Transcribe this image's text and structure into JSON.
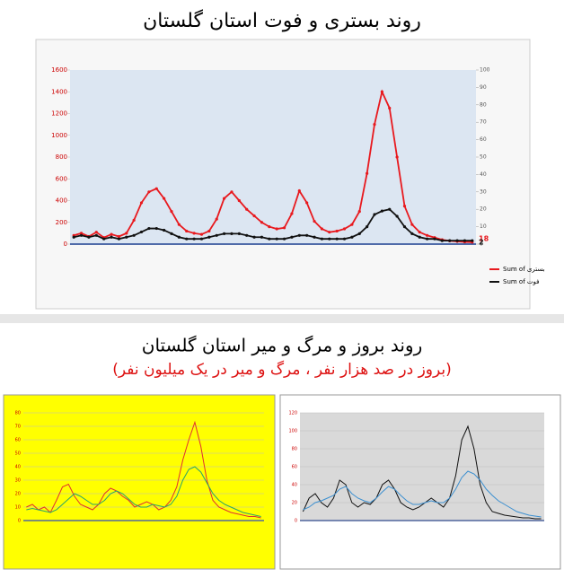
{
  "header": {
    "title": "روند بستری و فوت استان گلستان",
    "subtitle": "روند بروز و مرگ و میر استان گلستان",
    "note": "(بروز در صد هزار نفر ، مرگ و میر در یک میلیون نفر)"
  },
  "chart_data": [
    {
      "type": "line",
      "categories": [
        null,
        null,
        null,
        null,
        null,
        null,
        null,
        null,
        null,
        null,
        null,
        null,
        null,
        null,
        null,
        null,
        null,
        null,
        null,
        null,
        null,
        null,
        null,
        null,
        null,
        null,
        null,
        null,
        null,
        null,
        null,
        null,
        null,
        null,
        null,
        null,
        null,
        null,
        null,
        null,
        null,
        null,
        null,
        null,
        null,
        null,
        null,
        null,
        null,
        null,
        null,
        null,
        null,
        null
      ],
      "series": [
        {
          "name": "Sum of بستری",
          "color": "#e8191e",
          "values": [
            80,
            100,
            70,
            110,
            60,
            90,
            70,
            100,
            220,
            380,
            480,
            510,
            420,
            300,
            180,
            120,
            100,
            90,
            120,
            230,
            420,
            480,
            400,
            320,
            260,
            200,
            160,
            140,
            150,
            280,
            490,
            380,
            210,
            140,
            110,
            120,
            140,
            180,
            300,
            650,
            1100,
            1400,
            1250,
            800,
            350,
            180,
            110,
            80,
            60,
            40,
            30,
            25,
            20,
            18
          ]
        },
        {
          "name": "Sum of فوت",
          "color": "#111111",
          "axis": "y2",
          "values": [
            4,
            5,
            4,
            5,
            3,
            4,
            3,
            4,
            5,
            7,
            9,
            9,
            8,
            6,
            4,
            3,
            3,
            3,
            4,
            5,
            6,
            6,
            6,
            5,
            4,
            4,
            3,
            3,
            3,
            4,
            5,
            5,
            4,
            3,
            3,
            3,
            3,
            4,
            6,
            10,
            17,
            19,
            20,
            16,
            10,
            6,
            4,
            3,
            3,
            2,
            2,
            2,
            2,
            2
          ]
        }
      ],
      "ylim": [
        0,
        1600
      ],
      "yticks": [
        0,
        200,
        400,
        600,
        800,
        1000,
        1200,
        1400,
        1600
      ],
      "y2lim": [
        0,
        100
      ],
      "y2ticks": [
        0,
        10,
        20,
        30,
        40,
        50,
        60,
        70,
        80,
        90,
        100
      ],
      "grid": false
    },
    {
      "type": "line",
      "categories": [
        null,
        null,
        null,
        null,
        null,
        null,
        null,
        null,
        null,
        null,
        null,
        null,
        null,
        null,
        null,
        null,
        null,
        null,
        null,
        null,
        null,
        null,
        null,
        null,
        null,
        null,
        null,
        null,
        null,
        null,
        null,
        null,
        null,
        null,
        null,
        null,
        null,
        null,
        null,
        null
      ],
      "series": [
        {
          "color": "#e03030",
          "values": [
            10,
            12,
            8,
            10,
            6,
            15,
            25,
            27,
            18,
            12,
            10,
            8,
            12,
            20,
            24,
            22,
            18,
            15,
            10,
            12,
            14,
            12,
            8,
            10,
            15,
            25,
            45,
            60,
            73,
            55,
            30,
            15,
            10,
            8,
            6,
            5,
            4,
            3,
            3,
            2
          ]
        },
        {
          "color": "#2aa36a",
          "values": [
            8,
            9,
            8,
            7,
            6,
            8,
            12,
            16,
            20,
            18,
            15,
            12,
            12,
            15,
            20,
            22,
            20,
            16,
            12,
            10,
            10,
            12,
            11,
            10,
            12,
            18,
            30,
            38,
            40,
            36,
            28,
            20,
            15,
            12,
            10,
            8,
            6,
            5,
            4,
            3
          ]
        }
      ],
      "ylim": [
        0,
        80
      ],
      "yticks": [
        0,
        10,
        20,
        30,
        40,
        50,
        60,
        70,
        80
      ],
      "grid": true
    },
    {
      "type": "line",
      "categories": [
        null,
        null,
        null,
        null,
        null,
        null,
        null,
        null,
        null,
        null,
        null,
        null,
        null,
        null,
        null,
        null,
        null,
        null,
        null,
        null,
        null,
        null,
        null,
        null,
        null,
        null,
        null,
        null,
        null,
        null,
        null,
        null,
        null,
        null,
        null,
        null,
        null,
        null,
        null,
        null
      ],
      "series": [
        {
          "color": "#111111",
          "values": [
            10,
            25,
            30,
            20,
            15,
            25,
            45,
            40,
            20,
            15,
            20,
            18,
            25,
            40,
            45,
            35,
            20,
            15,
            12,
            15,
            20,
            25,
            20,
            15,
            25,
            50,
            90,
            105,
            80,
            40,
            20,
            10,
            8,
            6,
            5,
            4,
            3,
            3,
            2,
            2
          ]
        },
        {
          "color": "#3b8fd0",
          "values": [
            12,
            15,
            20,
            22,
            25,
            28,
            35,
            38,
            30,
            25,
            22,
            20,
            25,
            32,
            38,
            35,
            28,
            22,
            18,
            18,
            20,
            22,
            20,
            20,
            25,
            35,
            48,
            55,
            52,
            45,
            35,
            28,
            22,
            18,
            14,
            10,
            8,
            6,
            5,
            4
          ]
        }
      ],
      "ylim": [
        0,
        120
      ],
      "yticks": [
        0,
        20,
        40,
        60,
        80,
        100,
        120
      ],
      "grid": true
    }
  ]
}
